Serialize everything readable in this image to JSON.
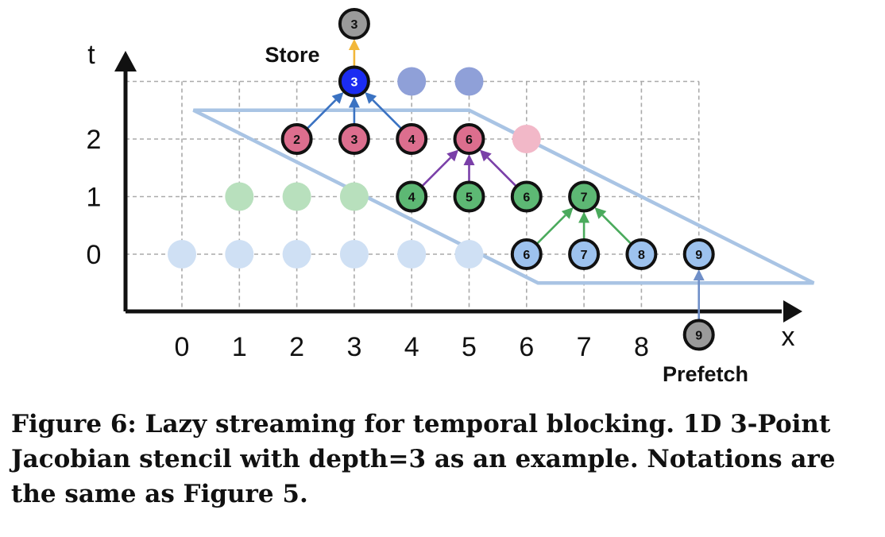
{
  "axes": {
    "x_label": "x",
    "t_label": "t",
    "x_ticks": [
      "0",
      "1",
      "2",
      "3",
      "4",
      "5",
      "6",
      "7",
      "8"
    ],
    "t_ticks": [
      "0",
      "1",
      "2"
    ]
  },
  "annotations": {
    "store": "Store",
    "prefetch": "Prefetch"
  },
  "colors": {
    "grid": "#aaaaaa",
    "axis": "#111111",
    "window": "#a9c4e4",
    "row0_faded": "#cfe0f4",
    "row0_active": "#9dc2ee",
    "row1_faded": "#b8e0bd",
    "row1_active": "#5db874",
    "row2_active": "#dc6e8e",
    "row2_faded": "#f2b8c8",
    "row3_active": "#1b2cf2",
    "row3_faded": "#8fa0d8",
    "node_gray": "#9a9a9a",
    "arrow_blue": "#3a72c2",
    "arrow_purple": "#7a3fa8",
    "arrow_green": "#4aaa5c",
    "arrow_orange": "#f2b73a",
    "arrow_prefetch": "#6f8fc8"
  },
  "nodes": [
    {
      "x": 0,
      "t": 0,
      "label": "",
      "style": "faded",
      "color": "row0_faded"
    },
    {
      "x": 1,
      "t": 0,
      "label": "",
      "style": "faded",
      "color": "row0_faded"
    },
    {
      "x": 2,
      "t": 0,
      "label": "",
      "style": "faded",
      "color": "row0_faded"
    },
    {
      "x": 3,
      "t": 0,
      "label": "",
      "style": "faded",
      "color": "row0_faded"
    },
    {
      "x": 4,
      "t": 0,
      "label": "",
      "style": "faded",
      "color": "row0_faded"
    },
    {
      "x": 5,
      "t": 0,
      "label": "",
      "style": "faded",
      "color": "row0_faded"
    },
    {
      "x": 6,
      "t": 0,
      "label": "6",
      "style": "active",
      "color": "row0_active"
    },
    {
      "x": 7,
      "t": 0,
      "label": "7",
      "style": "active",
      "color": "row0_active"
    },
    {
      "x": 8,
      "t": 0,
      "label": "8",
      "style": "active",
      "color": "row0_active"
    },
    {
      "x": 9,
      "t": 0,
      "label": "9",
      "style": "active",
      "color": "row0_active"
    },
    {
      "x": 1,
      "t": 1,
      "label": "",
      "style": "faded",
      "color": "row1_faded"
    },
    {
      "x": 2,
      "t": 1,
      "label": "",
      "style": "faded",
      "color": "row1_faded"
    },
    {
      "x": 3,
      "t": 1,
      "label": "",
      "style": "faded",
      "color": "row1_faded"
    },
    {
      "x": 4,
      "t": 1,
      "label": "4",
      "style": "active",
      "color": "row1_active"
    },
    {
      "x": 5,
      "t": 1,
      "label": "5",
      "style": "active",
      "color": "row1_active"
    },
    {
      "x": 6,
      "t": 1,
      "label": "6",
      "style": "active",
      "color": "row1_active"
    },
    {
      "x": 7,
      "t": 1,
      "label": "7",
      "style": "active",
      "color": "row1_active"
    },
    {
      "x": 2,
      "t": 2,
      "label": "2",
      "style": "active",
      "color": "row2_active"
    },
    {
      "x": 3,
      "t": 2,
      "label": "3",
      "style": "active",
      "color": "row2_active"
    },
    {
      "x": 4,
      "t": 2,
      "label": "4",
      "style": "active",
      "color": "row2_active"
    },
    {
      "x": 5,
      "t": 2,
      "label": "6",
      "style": "active",
      "color": "row2_active"
    },
    {
      "x": 6,
      "t": 2,
      "label": "",
      "style": "faded",
      "color": "row2_faded"
    },
    {
      "x": 3,
      "t": 3,
      "label": "3",
      "style": "active",
      "color": "row3_active",
      "text_color": "#ffffff"
    },
    {
      "x": 4,
      "t": 3,
      "label": "",
      "style": "faded",
      "color": "row3_faded"
    },
    {
      "x": 5,
      "t": 3,
      "label": "",
      "style": "faded",
      "color": "row3_faded"
    },
    {
      "x": 3,
      "t": 4,
      "label": "3",
      "style": "active",
      "color": "node_gray"
    },
    {
      "x": 9,
      "t": -1.4,
      "label": "9",
      "style": "active",
      "color": "node_gray"
    }
  ],
  "edges": [
    {
      "from": [
        2,
        2
      ],
      "to": [
        3,
        3
      ],
      "color": "arrow_blue"
    },
    {
      "from": [
        3,
        2
      ],
      "to": [
        3,
        3
      ],
      "color": "arrow_blue"
    },
    {
      "from": [
        4,
        2
      ],
      "to": [
        3,
        3
      ],
      "color": "arrow_blue"
    },
    {
      "from": [
        4,
        1
      ],
      "to": [
        5,
        2
      ],
      "color": "arrow_purple"
    },
    {
      "from": [
        5,
        1
      ],
      "to": [
        5,
        2
      ],
      "color": "arrow_purple"
    },
    {
      "from": [
        6,
        1
      ],
      "to": [
        5,
        2
      ],
      "color": "arrow_purple"
    },
    {
      "from": [
        6,
        0
      ],
      "to": [
        7,
        1
      ],
      "color": "arrow_green"
    },
    {
      "from": [
        7,
        0
      ],
      "to": [
        7,
        1
      ],
      "color": "arrow_green"
    },
    {
      "from": [
        8,
        0
      ],
      "to": [
        7,
        1
      ],
      "color": "arrow_green"
    },
    {
      "from": [
        3,
        3
      ],
      "to": [
        3,
        4
      ],
      "color": "arrow_orange"
    },
    {
      "from": [
        9,
        -1.4
      ],
      "to": [
        9,
        0
      ],
      "color": "arrow_prefetch"
    }
  ],
  "caption": "Figure 6: Lazy streaming for temporal blocking. 1D 3-Point Jacobian stencil with depth=3 as an example. Notations are the same as Figure 5."
}
